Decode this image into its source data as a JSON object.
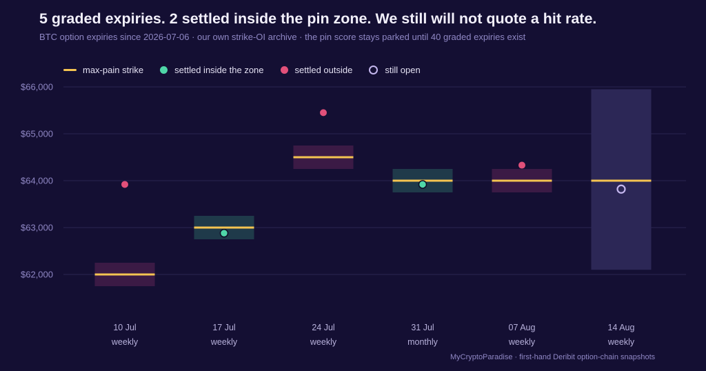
{
  "title": "5 graded expiries. 2 settled inside the pin zone. We still will not quote a hit rate.",
  "subtitle": "BTC option expiries since 2026-07-06 · our own strike-OI archive · the pin score stays parked until 40 graded expiries exist",
  "legend": {
    "max_pain": "max-pain strike",
    "inside": "settled inside the zone",
    "outside": "settled outside",
    "open": "still open"
  },
  "footer": "MyCryptoParadise · first-hand Deribit option-chain snapshots",
  "colors": {
    "background": "#140f33",
    "max_pain_line": "#f5c451",
    "inside": "#4fd6a8",
    "outside": "#e2507a",
    "open": "#c4b7ee",
    "zone_inside": "#1f3a4a",
    "zone_outside": "#3b1a45",
    "zone_open": "#2c2756"
  },
  "chart_data": {
    "type": "scatter",
    "ylim": [
      61600,
      66000
    ],
    "yticks": [
      62000,
      63000,
      64000,
      65000,
      66000
    ],
    "ytick_labels": [
      "$62,000",
      "$63,000",
      "$64,000",
      "$65,000",
      "$66,000"
    ],
    "categories": [
      "10 Jul",
      "17 Jul",
      "24 Jul",
      "31 Jul",
      "07 Aug",
      "14 Aug"
    ],
    "expiry_types": [
      "weekly",
      "weekly",
      "weekly",
      "monthly",
      "weekly",
      "weekly"
    ],
    "max_pain": [
      62000,
      63000,
      64500,
      64000,
      64000,
      64000
    ],
    "zone_low": [
      61750,
      62750,
      64250,
      63750,
      63750,
      62100
    ],
    "zone_high": [
      62250,
      63250,
      64750,
      64250,
      64250,
      65950
    ],
    "settle": [
      63920,
      62880,
      65450,
      63920,
      64330,
      63820
    ],
    "status": [
      "outside",
      "inside",
      "outside",
      "inside",
      "outside",
      "open"
    ],
    "grid": true,
    "legend_position": "top-left"
  }
}
